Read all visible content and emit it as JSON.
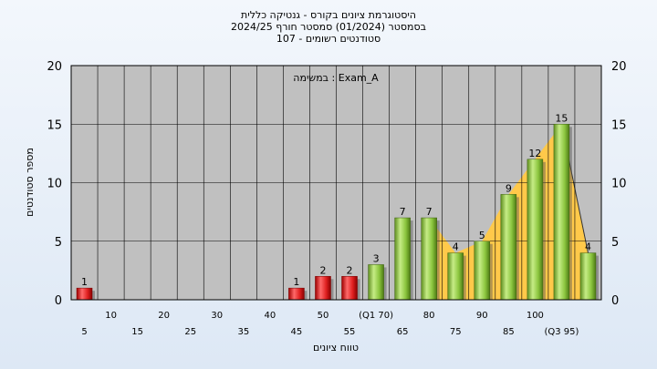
{
  "chart_data": {
    "type": "bar",
    "title_lines": [
      "היסטוגרמת ציונים בקורס - גנטיקה כללית",
      "בסמסטר  (01/2024)  סמסטר חורף 2024/25",
      "סטודנטים רשומים - 107"
    ],
    "legend_text": "במשימה : Exam_A",
    "ylabel": "מספר סטודנטים",
    "xlabel": "טווח ציונים",
    "ylim": [
      0,
      20
    ],
    "yticks": [
      0,
      5,
      10,
      15,
      20
    ],
    "grid": true,
    "categories": [
      5,
      10,
      15,
      20,
      25,
      30,
      35,
      40,
      45,
      50,
      55,
      60,
      65,
      70,
      75,
      80,
      85,
      90,
      95,
      100
    ],
    "x_tick_labels_upper": [
      "10",
      "20",
      "30",
      "40",
      "50",
      "(Q1 70)",
      "80",
      "90",
      "100"
    ],
    "x_tick_labels_lower": [
      "5",
      "15",
      "25",
      "35",
      "45",
      "55",
      "65",
      "75",
      "85",
      "(Q3 95)"
    ],
    "values": [
      1,
      0,
      0,
      0,
      0,
      0,
      0,
      0,
      1,
      2,
      2,
      3,
      7,
      7,
      4,
      5,
      9,
      12,
      15,
      4
    ],
    "value_labels": [
      "1",
      "",
      "",
      "",
      "",
      "",
      "",
      "",
      "1",
      "2",
      "2",
      "3",
      "7",
      "7",
      "4",
      "5",
      "9",
      "12",
      "15",
      "4"
    ],
    "failing_threshold": 55,
    "colors": {
      "plot_bg": "#c0c0c0",
      "fail_bar": "#e02020",
      "pass_bar": "#8cc63f",
      "area_fill": "#ffc94a",
      "grid": "#000000"
    }
  }
}
